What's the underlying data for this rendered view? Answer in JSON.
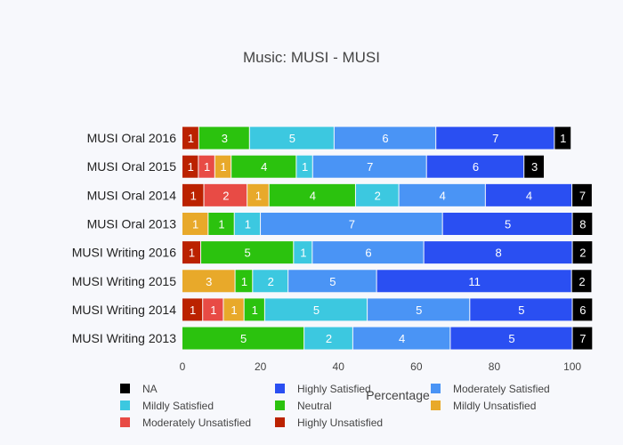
{
  "chart_data": {
    "type": "bar",
    "orientation": "horizontal",
    "stacked": true,
    "title": "Music: MUSI - MUSI",
    "xlabel": "Percentage",
    "ylabel": "",
    "xlim": [
      0,
      105
    ],
    "xticks": [
      0,
      20,
      40,
      60,
      80,
      100
    ],
    "grid": false,
    "legend_position": "bottom",
    "categories": [
      "MUSI Oral 2016",
      "MUSI Oral 2015",
      "MUSI Oral 2014",
      "MUSI Oral 2013",
      "MUSI Writing 2016",
      "MUSI Writing 2015",
      "MUSI Writing 2014",
      "MUSI Writing 2013"
    ],
    "series": [
      {
        "name": "Highly Unsatisfied",
        "color": "#bb2200",
        "label_color": "#ffffff",
        "values": [
          4.3,
          4.2,
          5.6,
          0,
          4.8,
          0,
          5.3,
          0
        ],
        "labels": [
          "1",
          "1",
          "1",
          "",
          "1",
          "",
          "1",
          ""
        ]
      },
      {
        "name": "Moderately Unsatisfied",
        "color": "#e84b45",
        "label_color": "#ffffff",
        "values": [
          0,
          4.2,
          11.1,
          0,
          0,
          0,
          5.3,
          0
        ],
        "labels": [
          "",
          "1",
          "2",
          "",
          "",
          "",
          "1",
          ""
        ]
      },
      {
        "name": "Mildly Unsatisfied",
        "color": "#e8a92a",
        "label_color": "#ffffff",
        "values": [
          0,
          4.2,
          5.6,
          6.7,
          0,
          13.6,
          5.3,
          0
        ],
        "labels": [
          "",
          "1",
          "1",
          "1",
          "",
          "3",
          "1",
          ""
        ]
      },
      {
        "name": "Neutral",
        "color": "#2bc20e",
        "label_color": "#ffffff",
        "values": [
          13.0,
          16.7,
          22.2,
          6.7,
          23.8,
          4.5,
          5.3,
          31.3
        ],
        "labels": [
          "3",
          "4",
          "4",
          "1",
          "5",
          "1",
          "1",
          "5"
        ]
      },
      {
        "name": "Mildly Satisfied",
        "color": "#3cc8e0",
        "label_color": "#ffffff",
        "values": [
          21.7,
          4.2,
          11.1,
          6.7,
          4.8,
          9.1,
          26.3,
          12.5
        ],
        "labels": [
          "5",
          "1",
          "2",
          "1",
          "1",
          "2",
          "5",
          "2"
        ]
      },
      {
        "name": "Moderately Satisfied",
        "color": "#4a94f5",
        "label_color": "#ffffff",
        "values": [
          26.1,
          29.2,
          22.2,
          46.7,
          28.6,
          22.7,
          26.3,
          25.0
        ],
        "labels": [
          "6",
          "7",
          "4",
          "7",
          "6",
          "5",
          "5",
          "4"
        ]
      },
      {
        "name": "Highly Satisfied",
        "color": "#2a4ff2",
        "label_color": "#ffffff",
        "values": [
          30.4,
          25.0,
          22.2,
          33.3,
          38.1,
          50.0,
          26.3,
          31.3
        ],
        "labels": [
          "7",
          "6",
          "4",
          "5",
          "8",
          "11",
          "5",
          "5"
        ]
      },
      {
        "name": "NA",
        "color": "#000000",
        "label_color": "#ffffff",
        "values": [
          4.3,
          5.2,
          5.2,
          5.2,
          5.2,
          5.2,
          5.2,
          5.2
        ],
        "labels": [
          "1",
          "3",
          "7",
          "8",
          "2",
          "2",
          "6",
          "7"
        ]
      }
    ],
    "legend_order": [
      "NA",
      "Highly Satisfied",
      "Moderately Satisfied",
      "Mildly Satisfied",
      "Neutral",
      "Mildly Unsatisfied",
      "Moderately Unsatisfied",
      "Highly Unsatisfied"
    ]
  }
}
